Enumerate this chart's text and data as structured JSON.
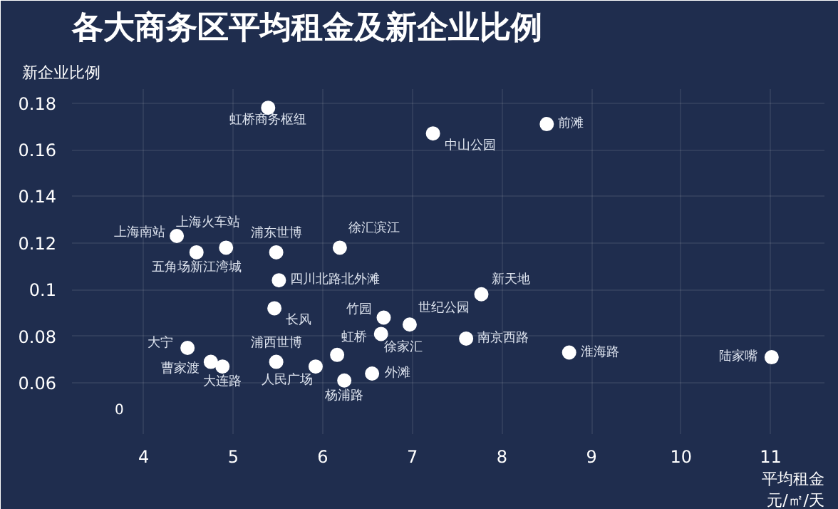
{
  "chart_data": {
    "type": "scatter",
    "title": "各大商务区平均租金及新企业比例",
    "xlabel": "平均租金元/㎡/天",
    "ylabel": "新企业比例",
    "x": [
      5.39,
      7.23,
      8.5,
      4.37,
      4.59,
      4.92,
      5.48,
      6.19,
      5.51,
      5.46,
      6.68,
      6.97,
      6.65,
      7.77,
      7.6,
      8.75,
      11.01,
      4.49,
      4.75,
      4.88,
      5.48,
      6.16,
      5.92,
      6.24,
      6.55
    ],
    "series": [
      {
        "color": "#ffffff",
        "values": [
          0.178,
          0.167,
          0.171,
          0.123,
          0.116,
          0.118,
          0.116,
          0.118,
          0.104,
          0.092,
          0.088,
          0.085,
          0.081,
          0.098,
          0.079,
          0.073,
          0.071,
          0.075,
          0.069,
          0.067,
          0.069,
          0.072,
          0.067,
          0.061,
          0.064
        ]
      }
    ],
    "annotations": [
      {
        "text": "虹桥商务枢纽",
        "x": 5.39,
        "y": 0.178
      },
      {
        "text": "中山公园",
        "x": 7.23,
        "y": 0.167
      },
      {
        "text": "前滩",
        "x": 8.5,
        "y": 0.171
      },
      {
        "text": "上海南站",
        "x": 4.37,
        "y": 0.123
      },
      {
        "text": "五角场新江湾城",
        "x": 4.59,
        "y": 0.116
      },
      {
        "text": "上海火车站",
        "x": 4.92,
        "y": 0.118
      },
      {
        "text": "浦东世博",
        "x": 5.48,
        "y": 0.116
      },
      {
        "text": "徐汇滨江",
        "x": 6.19,
        "y": 0.118
      },
      {
        "text": "四川北路北外滩",
        "x": 5.51,
        "y": 0.104
      },
      {
        "text": "长风",
        "x": 5.46,
        "y": 0.092
      },
      {
        "text": "竹园",
        "x": 6.68,
        "y": 0.088
      },
      {
        "text": "世纪公园",
        "x": 6.97,
        "y": 0.085
      },
      {
        "text": "徐家汇",
        "x": 6.65,
        "y": 0.081
      },
      {
        "text": "新天地",
        "x": 7.77,
        "y": 0.098
      },
      {
        "text": "南京西路",
        "x": 7.6,
        "y": 0.079
      },
      {
        "text": "淮海路",
        "x": 8.75,
        "y": 0.073
      },
      {
        "text": "陆家嘴",
        "x": 11.01,
        "y": 0.071
      },
      {
        "text": "大宁",
        "x": 4.49,
        "y": 0.075
      },
      {
        "text": "曹家渡",
        "x": 4.75,
        "y": 0.069
      },
      {
        "text": "大连路",
        "x": 4.88,
        "y": 0.067
      },
      {
        "text": "浦西世博",
        "x": 5.48,
        "y": 0.069
      },
      {
        "text": "虹桥",
        "x": 6.16,
        "y": 0.072
      },
      {
        "text": "人民广场",
        "x": 5.92,
        "y": 0.067
      },
      {
        "text": "杨浦路",
        "x": 6.24,
        "y": 0.061
      },
      {
        "text": "外滩",
        "x": 6.55,
        "y": 0.064
      },
      "0"
    ],
    "xlim": [
      3.2,
      11.6
    ],
    "ylim": [
      0.038,
      0.186
    ],
    "xticks": [
      4,
      5,
      6,
      7,
      8,
      9,
      10,
      11
    ],
    "yticks": [
      0.06,
      0.08,
      {
        "value": 0.1,
        "label": "0.1"
      },
      0.12,
      0.14,
      0.16,
      0.18
    ],
    "grid": true,
    "marker": "circle"
  }
}
